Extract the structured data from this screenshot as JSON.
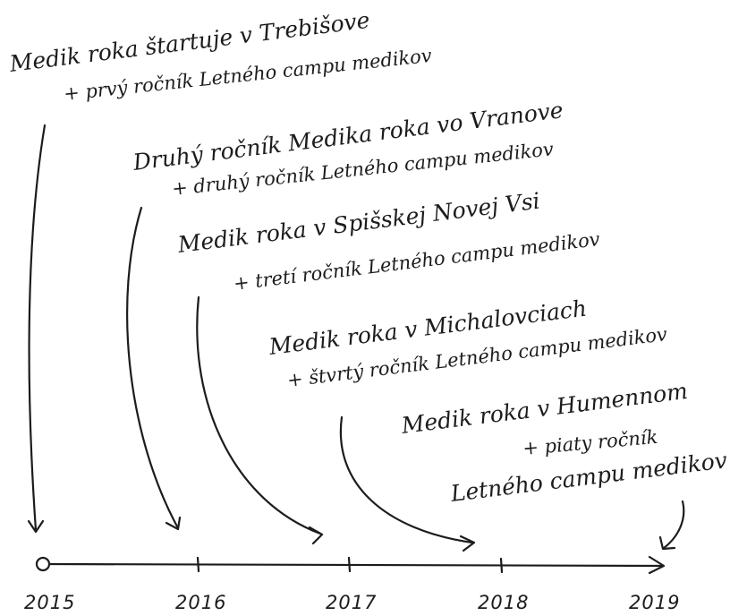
{
  "events": [
    {
      "lines": [
        "Medik roka štartuje v Trebišove",
        "+ prvý ročník Letného campu medikov"
      ]
    },
    {
      "lines": [
        "Druhý ročník Medika roka vo Vranove",
        "+ druhý ročník Letného campu medikov"
      ]
    },
    {
      "lines": [
        "Medik roka v Spišskej Novej Vsi",
        "+ tretí ročník Letného campu medikov"
      ]
    },
    {
      "lines": [
        "Medik roka v Michalovciach",
        "+ štvrtý ročník Letného campu medikov"
      ]
    },
    {
      "lines": [
        "Medik roka v Humennom",
        "+ piaty ročník",
        "Letného campu medikov"
      ]
    }
  ],
  "timeline": {
    "years": [
      "2015",
      "2016",
      "2017",
      "2018",
      "2019"
    ]
  },
  "colors": {
    "ink": "#1c1c1c",
    "background": "#ffffff"
  }
}
